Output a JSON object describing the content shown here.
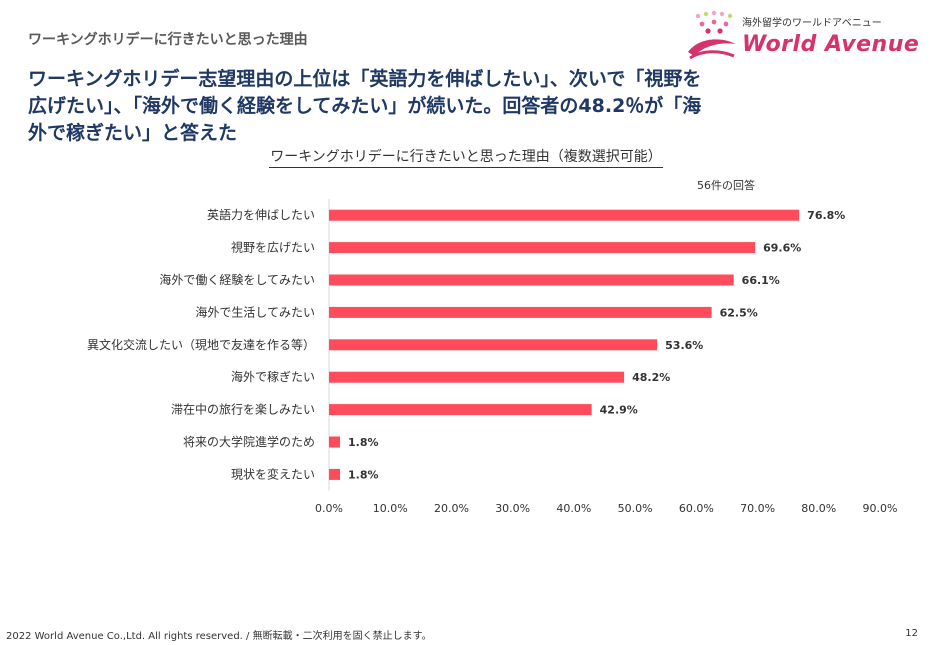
{
  "header": {
    "section_title": "ワーキングホリデーに行きたいと思った理由",
    "headline": "ワーキングホリデー志望理由の上位は「英語力を伸ばしたい」、次いで「視野を広げたい」、「海外で働く経験をしてみたい」が続いた。回答者の48.2％が「海外で稼ぎたい」と答えた"
  },
  "logo": {
    "tagline": "海外留学のワールドアベニュー",
    "name": "World Avenue",
    "brand_color": "#d6336c"
  },
  "chart_data": {
    "type": "bar",
    "orientation": "horizontal",
    "title": "ワーキングホリデーに行きたいと思った理由（複数選択可能）",
    "note": "56件の回答",
    "bar_color": "#ff4b5c",
    "categories": [
      "英語力を伸ばしたい",
      "視野を広げたい",
      "海外で働く経験をしてみたい",
      "海外で生活してみたい",
      "異文化交流したい（現地で友達を作る等）",
      "海外で稼ぎたい",
      "滞在中の旅行を楽しみたい",
      "将来の大学院進学のため",
      "現状を変えたい"
    ],
    "values": [
      76.8,
      69.6,
      66.1,
      62.5,
      53.6,
      48.2,
      42.9,
      1.8,
      1.8
    ],
    "value_labels": [
      "76.8%",
      "69.6%",
      "66.1%",
      "62.5%",
      "53.6%",
      "48.2%",
      "42.9%",
      "1.8%",
      "1.8%"
    ],
    "xlim": [
      0,
      90
    ],
    "xticks": [
      0,
      10,
      20,
      30,
      40,
      50,
      60,
      70,
      80,
      90
    ],
    "xtick_labels": [
      "0.0%",
      "10.0%",
      "20.0%",
      "30.0%",
      "40.0%",
      "50.0%",
      "60.0%",
      "70.0%",
      "80.0%",
      "90.0%"
    ],
    "grid": false
  },
  "footer": {
    "copyright": "2022 World Avenue Co.,Ltd. All rights reserved. / 無断転載・二次利用を固く禁止します。",
    "page_number": "12"
  }
}
